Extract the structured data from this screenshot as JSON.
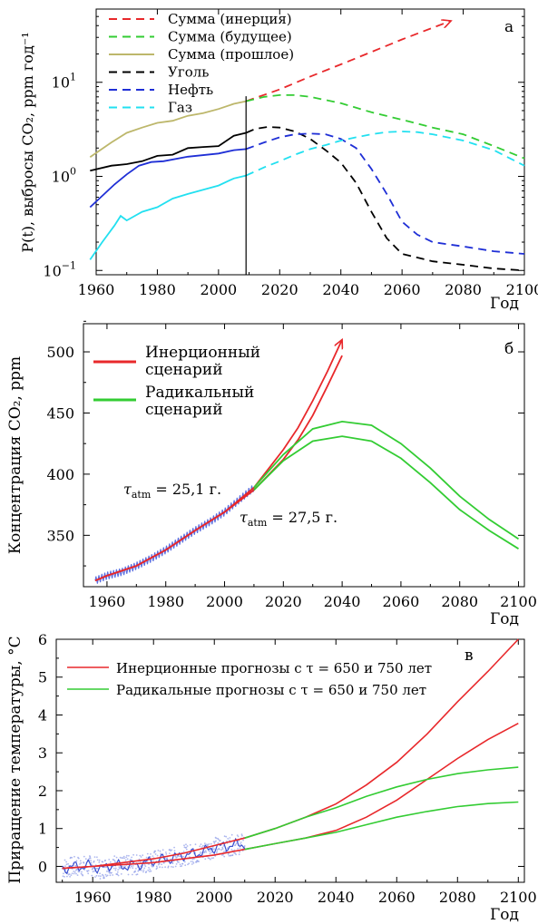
{
  "chart_data": [
    {
      "id": "a",
      "type": "line",
      "panel_label": "а",
      "xlabel": "Год",
      "ylabel": "P(t), выбросы CO₂, ppm год⁻¹",
      "yscale": "log",
      "xlim": [
        1960,
        2100
      ],
      "ylim": [
        0.09,
        60
      ],
      "x_ticks": [
        1960,
        1980,
        2000,
        2020,
        2040,
        2060,
        2080,
        2100
      ],
      "y_ticks": [
        {
          "value": 0.1,
          "base": "10",
          "exp": "−1"
        },
        {
          "value": 1,
          "base": "10",
          "exp": "0"
        },
        {
          "value": 10,
          "base": "10",
          "exp": "1"
        }
      ],
      "vline_x": 2009,
      "legend_position": "top-left",
      "series": [
        {
          "name": "Сумма (инерция)",
          "color": "#e8282b",
          "style": "dashed",
          "arrow_end": true,
          "x": [
            2009,
            2020,
            2030,
            2040,
            2050,
            2060,
            2070,
            2076
          ],
          "y": [
            6.3,
            8.4,
            11.5,
            15.5,
            21,
            28.5,
            38,
            45
          ]
        },
        {
          "name": "Сумма (будущее)",
          "color": "#33cc33",
          "style": "dashed",
          "x": [
            2009,
            2015,
            2020,
            2025,
            2030,
            2040,
            2050,
            2060,
            2070,
            2080,
            2090,
            2100
          ],
          "y": [
            6.3,
            7.0,
            7.3,
            7.3,
            7.0,
            6.0,
            4.8,
            4.0,
            3.3,
            2.8,
            2.1,
            1.55
          ]
        },
        {
          "name": "Сумма (прошлое)",
          "color": "#bdb76b",
          "style": "solid",
          "x": [
            1958,
            1965,
            1970,
            1975,
            1980,
            1985,
            1990,
            1995,
            2000,
            2005,
            2009
          ],
          "y": [
            1.6,
            2.3,
            2.9,
            3.3,
            3.7,
            3.9,
            4.4,
            4.7,
            5.2,
            5.9,
            6.3
          ]
        },
        {
          "name": "Уголь",
          "color": "#000000",
          "style": "solid",
          "x": [
            1958,
            1965,
            1970,
            1975,
            1980,
            1985,
            1990,
            1995,
            2000,
            2005,
            2009
          ],
          "y": [
            1.15,
            1.3,
            1.35,
            1.45,
            1.65,
            1.7,
            2.0,
            2.05,
            2.1,
            2.7,
            2.9
          ]
        },
        {
          "name": "Уголь",
          "color": "#000000",
          "style": "dashed",
          "x": [
            2009,
            2012,
            2016,
            2020,
            2025,
            2030,
            2035,
            2040,
            2045,
            2050,
            2055,
            2060,
            2070,
            2080,
            2090,
            2100
          ],
          "y": [
            2.9,
            3.2,
            3.35,
            3.3,
            3.0,
            2.5,
            1.9,
            1.4,
            0.85,
            0.42,
            0.22,
            0.15,
            0.125,
            0.115,
            0.105,
            0.1
          ]
        },
        {
          "name": "Нефть",
          "color": "#1f2fd6",
          "style": "solid",
          "x": [
            1958,
            1962,
            1966,
            1970,
            1974,
            1978,
            1982,
            1990,
            2000,
            2005,
            2009
          ],
          "y": [
            0.47,
            0.62,
            0.82,
            1.05,
            1.3,
            1.42,
            1.45,
            1.62,
            1.75,
            1.9,
            1.95
          ]
        },
        {
          "name": "Нефть",
          "color": "#1f2fd6",
          "style": "dashed",
          "x": [
            2009,
            2015,
            2020,
            2025,
            2030,
            2035,
            2040,
            2045,
            2050,
            2055,
            2060,
            2065,
            2070,
            2080,
            2090,
            2100
          ],
          "y": [
            1.95,
            2.3,
            2.6,
            2.8,
            2.85,
            2.8,
            2.5,
            2.0,
            1.2,
            0.65,
            0.33,
            0.24,
            0.2,
            0.18,
            0.16,
            0.15
          ]
        },
        {
          "name": "Газ",
          "color": "#22e0f0",
          "style": "solid",
          "x": [
            1958,
            1962,
            1966,
            1968,
            1970,
            1975,
            1980,
            1985,
            1990,
            1995,
            2000,
            2005,
            2009
          ],
          "y": [
            0.13,
            0.2,
            0.3,
            0.38,
            0.34,
            0.42,
            0.47,
            0.58,
            0.65,
            0.72,
            0.8,
            0.95,
            1.02
          ]
        },
        {
          "name": "Газ",
          "color": "#22e0f0",
          "style": "dashed",
          "x": [
            2009,
            2015,
            2020,
            2025,
            2030,
            2035,
            2040,
            2045,
            2050,
            2055,
            2060,
            2065,
            2070,
            2080,
            2090,
            2100
          ],
          "y": [
            1.02,
            1.25,
            1.45,
            1.7,
            1.95,
            2.15,
            2.4,
            2.6,
            2.8,
            2.95,
            3.0,
            2.95,
            2.8,
            2.4,
            1.9,
            1.3
          ]
        }
      ]
    },
    {
      "id": "b",
      "type": "line",
      "panel_label": "б",
      "xlabel": "Год",
      "ylabel": "Концентрация CO₂, ppm",
      "xlim": [
        1952,
        2102
      ],
      "ylim": [
        308,
        523
      ],
      "x_ticks": [
        1960,
        1980,
        2000,
        2020,
        2040,
        2060,
        2080,
        2100
      ],
      "y_ticks": [
        350,
        400,
        450,
        500
      ],
      "legend_position": "top-left",
      "legend": [
        {
          "line1": "Инерционный",
          "line2": "сценарий",
          "color": "#e8282b"
        },
        {
          "line1": "Радикальный",
          "line2": "сценарий",
          "color": "#33cc33"
        }
      ],
      "annotations": [
        {
          "symbol": "τ",
          "sub": "atm",
          "rest": " = 25,1 г."
        },
        {
          "symbol": "τ",
          "sub": "atm",
          "rest": " = 27,5 г."
        }
      ],
      "observed": {
        "color": "#5a6ee0",
        "x": [
          1956,
          1958,
          1960,
          1965,
          1970,
          1975,
          1980,
          1985,
          1990,
          1995,
          2000,
          2005,
          2010
        ],
        "y": [
          313,
          315,
          317,
          320,
          325,
          331,
          338,
          346,
          354,
          361,
          369,
          379,
          389
        ]
      },
      "series": [
        {
          "name": "Инерционный сценарий",
          "color": "#e8282b",
          "arrow_end": true,
          "x": [
            1956,
            1960,
            1970,
            1980,
            1990,
            2000,
            2010,
            2020,
            2025,
            2030,
            2035,
            2040
          ],
          "y": [
            313,
            317,
            325,
            338,
            354,
            369,
            389,
            420,
            438,
            460,
            484,
            510
          ]
        },
        {
          "name": "Инерционный сценарий",
          "color": "#e8282b",
          "x": [
            1956,
            1960,
            1970,
            1980,
            1990,
            2000,
            2010,
            2020,
            2025,
            2030,
            2035,
            2040
          ],
          "y": [
            313,
            317,
            325,
            338,
            354,
            369,
            387,
            412,
            428,
            448,
            472,
            497
          ]
        },
        {
          "name": "Радикальный сценарий",
          "color": "#33cc33",
          "x": [
            2010,
            2020,
            2030,
            2040,
            2050,
            2060,
            2070,
            2080,
            2090,
            2100
          ],
          "y": [
            389,
            416,
            437,
            443,
            440,
            425,
            405,
            382,
            363,
            347
          ]
        },
        {
          "name": "Радикальный сценарий",
          "color": "#33cc33",
          "x": [
            2010,
            2020,
            2030,
            2040,
            2050,
            2060,
            2070,
            2080,
            2090,
            2100
          ],
          "y": [
            387,
            411,
            427,
            431,
            427,
            413,
            393,
            371,
            354,
            339
          ]
        }
      ]
    },
    {
      "id": "v",
      "type": "line",
      "panel_label": "в",
      "xlabel": "Год",
      "ylabel": "Приращение температуры, °C",
      "xlim": [
        1948,
        2102
      ],
      "ylim": [
        -0.42,
        6
      ],
      "x_ticks": [
        1960,
        1980,
        2000,
        2020,
        2040,
        2060,
        2080,
        2100
      ],
      "y_ticks": [
        0,
        1,
        2,
        3,
        4,
        5,
        6
      ],
      "legend_position": "top-left",
      "legend": [
        {
          "text": "Инерционные прогнозы с τ = 650 и 750 лет",
          "color": "#e8282b"
        },
        {
          "text": "Радикальные прогнозы с τ = 650 и 750 лет",
          "color": "#33cc33"
        }
      ],
      "observed": {
        "color": "#3a4fd0",
        "x": [
          1950,
          1955,
          1960,
          1963,
          1966,
          1970,
          1975,
          1980,
          1985,
          1990,
          1995,
          2000,
          2005,
          2010
        ],
        "y": [
          -0.05,
          0.0,
          0.02,
          -0.08,
          0.05,
          0.0,
          0.05,
          0.15,
          0.2,
          0.3,
          0.35,
          0.5,
          0.55,
          0.6
        ]
      },
      "series": [
        {
          "name": "Инерционные прогнозы с τ = 650 лет",
          "color": "#e8282b",
          "x": [
            1950,
            1960,
            1970,
            1980,
            1990,
            2000,
            2010,
            2020,
            2030,
            2040,
            2050,
            2060,
            2070,
            2080,
            2090,
            2100
          ],
          "y": [
            -0.05,
            0.0,
            0.1,
            0.2,
            0.35,
            0.55,
            0.75,
            1.0,
            1.3,
            1.65,
            2.15,
            2.75,
            3.5,
            4.35,
            5.15,
            6.0
          ]
        },
        {
          "name": "Инерционные прогнозы с τ = 750 лет",
          "color": "#e8282b",
          "x": [
            1950,
            1960,
            1970,
            1980,
            1990,
            2000,
            2010,
            2020,
            2030,
            2040,
            2050,
            2060,
            2070,
            2080,
            2090,
            2100
          ],
          "y": [
            -0.05,
            0.0,
            0.05,
            0.1,
            0.2,
            0.3,
            0.45,
            0.6,
            0.75,
            0.95,
            1.3,
            1.75,
            2.3,
            2.85,
            3.35,
            3.78
          ]
        },
        {
          "name": "Радикальные прогнозы с τ = 650 лет",
          "color": "#33cc33",
          "x": [
            2010,
            2020,
            2030,
            2040,
            2050,
            2060,
            2070,
            2080,
            2090,
            2100
          ],
          "y": [
            0.75,
            1.0,
            1.3,
            1.55,
            1.85,
            2.1,
            2.3,
            2.45,
            2.55,
            2.62
          ]
        },
        {
          "name": "Радикальные прогнозы с τ = 750 лет",
          "color": "#33cc33",
          "x": [
            2010,
            2020,
            2030,
            2040,
            2050,
            2060,
            2070,
            2080,
            2090,
            2100
          ],
          "y": [
            0.45,
            0.6,
            0.75,
            0.9,
            1.1,
            1.3,
            1.45,
            1.58,
            1.66,
            1.7
          ]
        }
      ]
    }
  ]
}
